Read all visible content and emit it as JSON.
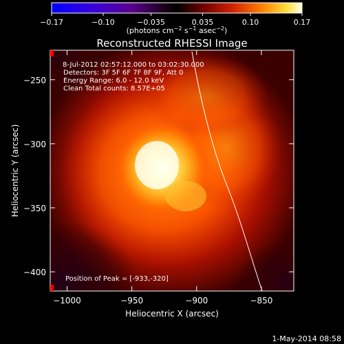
{
  "chart_data": {
    "type": "heatmap",
    "title": "Reconstructed RHESSI Image",
    "xlabel": "Heliocentric X (arcsec)",
    "ylabel": "Heliocentric Y (arcsec)",
    "xlim": [
      -1013,
      -825
    ],
    "ylim": [
      -415,
      -227
    ],
    "xticks": [
      -1000,
      -950,
      -900,
      -850
    ],
    "yticks": [
      -250,
      -300,
      -350,
      -400
    ],
    "peak": {
      "x": -933,
      "y": -320
    },
    "annotations": [
      "8-Jul-2012 02:57:12.000 to 03:02:30.000",
      "Detectors: 3F 5F 6F 7F 8F 9F, Att 0",
      "Energy Range: 6.0 - 12.0 keV",
      "Clean    Total counts: 8.57E+05"
    ],
    "peak_label": "Position of Peak = [-933,-320]",
    "colorbar": {
      "min": -0.17,
      "max": 0.17,
      "ticks": [
        "-0.17",
        "-0.10",
        "-0.035",
        "0.035",
        "0.10",
        "0.17"
      ],
      "unit_prefix": "(photons cm",
      "unit_exp1": "-2",
      "unit_mid1": " s",
      "unit_exp2": "-1",
      "unit_mid2": " asec",
      "unit_exp3": "-2",
      "unit_suffix": ")"
    },
    "limb_arc": "solar limb",
    "footer_date": "1-May-2014 08:58"
  }
}
